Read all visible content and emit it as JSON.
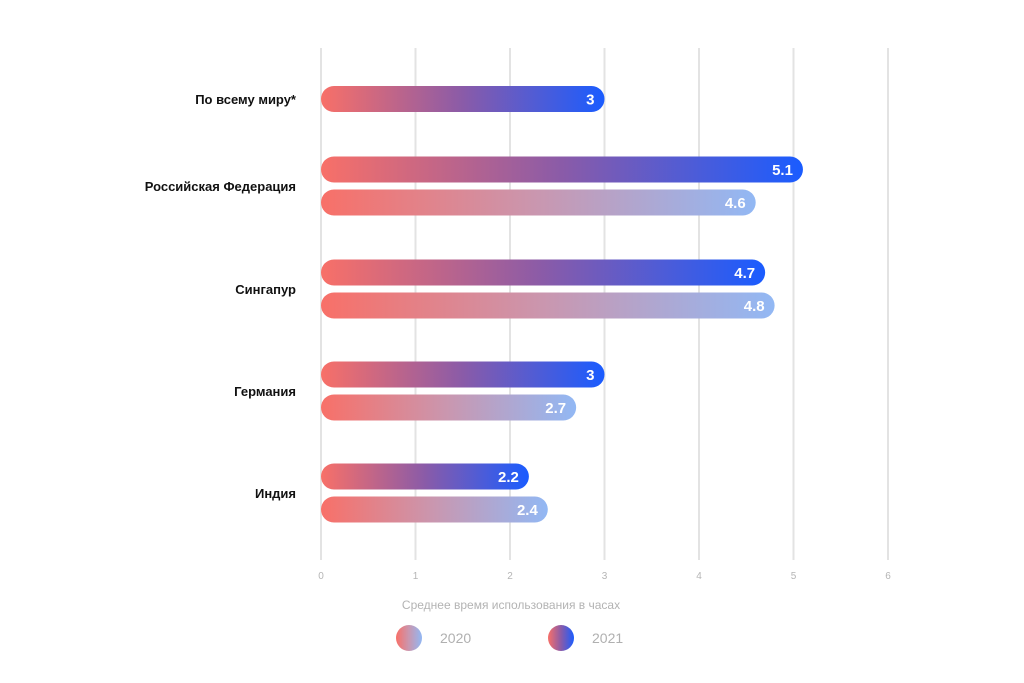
{
  "chart_data": {
    "type": "bar",
    "orientation": "horizontal",
    "categories": [
      "По всему миру*",
      "Российская Федерация",
      "Сингапур",
      "Германия",
      "Индия"
    ],
    "series": [
      {
        "name": "2021",
        "values": [
          3,
          5.1,
          4.7,
          3,
          2.2
        ],
        "color_start": "#f87068",
        "color_end": "#1a5cff"
      },
      {
        "name": "2020",
        "values": [
          null,
          4.6,
          4.8,
          2.7,
          2.4
        ],
        "color_start": "#f87068",
        "color_end": "#92b8f4"
      }
    ],
    "value_labels": {
      "2021": [
        "3",
        "5.1",
        "4.7",
        "3",
        "2.2"
      ],
      "2020": [
        "",
        "4.6",
        "4.8",
        "2.7",
        "2.4"
      ]
    },
    "xticks": [
      "0",
      "1",
      "2",
      "3",
      "4",
      "5",
      "6"
    ],
    "xlim": [
      0,
      6
    ],
    "xlabel": "Среднее время использования в часах",
    "ylabel": "",
    "title": "",
    "grid": true,
    "legend": {
      "position": "bottom",
      "entries": [
        "2020",
        "2021"
      ]
    }
  }
}
